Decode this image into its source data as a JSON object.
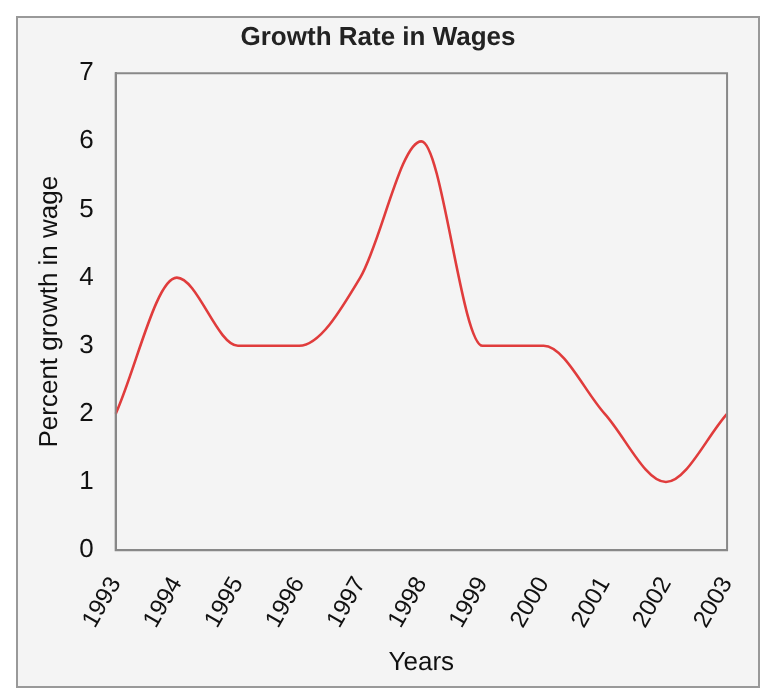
{
  "chart_data": {
    "type": "line",
    "title": "Growth Rate in Wages",
    "xlabel": "Years",
    "ylabel": "Percent growth in wage",
    "categories": [
      "1993",
      "1994",
      "1995",
      "1996",
      "1997",
      "1998",
      "1999",
      "2000",
      "2001",
      "2002",
      "2003"
    ],
    "series": [
      {
        "color": "#e03c3c",
        "values": [
          2,
          4,
          3,
          3,
          4,
          6,
          3,
          3,
          2,
          1,
          2
        ]
      }
    ],
    "ylim": [
      0,
      7
    ],
    "yticks": [
      0,
      1,
      2,
      3,
      4,
      5,
      6,
      7
    ],
    "grid": false,
    "legend": false,
    "marker": "none",
    "line_style": "solid"
  }
}
